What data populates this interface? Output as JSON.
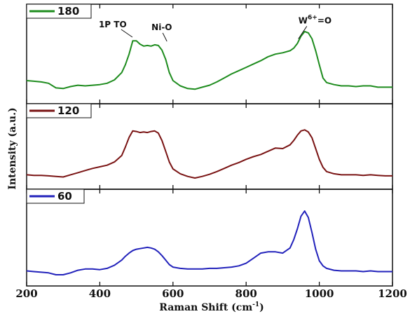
{
  "chart_data": {
    "type": "line",
    "xlabel": "Raman Shift (cm",
    "xlabel_sup": "-1",
    "xlabel_tail": ")",
    "ylabel": "Intensity (a.u.)",
    "xlim": [
      200,
      1200
    ],
    "xticks": [
      "200",
      "400",
      "600",
      "800",
      "1000",
      "1200"
    ],
    "layout": "three stacked panels sharing x axis, no y tick labels",
    "panels": [
      {
        "name": "180",
        "color": "#1e8c1e",
        "ylim": [
          0,
          1.1
        ],
        "x": [
          200,
          220,
          240,
          260,
          280,
          300,
          320,
          340,
          360,
          380,
          400,
          420,
          440,
          460,
          470,
          480,
          490,
          500,
          510,
          520,
          530,
          540,
          550,
          560,
          570,
          580,
          590,
          600,
          620,
          640,
          660,
          680,
          700,
          720,
          740,
          760,
          780,
          800,
          820,
          840,
          860,
          880,
          900,
          920,
          930,
          940,
          950,
          960,
          970,
          980,
          990,
          1000,
          1010,
          1020,
          1040,
          1060,
          1080,
          1100,
          1120,
          1140,
          1160,
          1180,
          1200
        ],
        "y": [
          0.18,
          0.17,
          0.16,
          0.14,
          0.07,
          0.06,
          0.09,
          0.11,
          0.1,
          0.11,
          0.12,
          0.14,
          0.19,
          0.3,
          0.42,
          0.58,
          0.78,
          0.78,
          0.73,
          0.7,
          0.71,
          0.7,
          0.72,
          0.71,
          0.64,
          0.5,
          0.3,
          0.18,
          0.1,
          0.06,
          0.05,
          0.08,
          0.11,
          0.16,
          0.22,
          0.28,
          0.33,
          0.38,
          0.43,
          0.48,
          0.54,
          0.58,
          0.6,
          0.63,
          0.67,
          0.74,
          0.85,
          0.92,
          0.9,
          0.81,
          0.63,
          0.42,
          0.22,
          0.15,
          0.12,
          0.1,
          0.1,
          0.09,
          0.1,
          0.1,
          0.08,
          0.08,
          0.08
        ]
      },
      {
        "name": "120",
        "color": "#7a1414",
        "ylim": [
          0,
          1.1
        ],
        "x": [
          200,
          220,
          240,
          260,
          280,
          300,
          320,
          340,
          360,
          380,
          400,
          420,
          440,
          460,
          470,
          480,
          490,
          500,
          510,
          520,
          530,
          540,
          550,
          560,
          570,
          580,
          590,
          600,
          620,
          640,
          660,
          680,
          700,
          720,
          740,
          760,
          780,
          800,
          820,
          840,
          860,
          880,
          900,
          920,
          930,
          940,
          950,
          960,
          970,
          980,
          990,
          1000,
          1010,
          1020,
          1040,
          1060,
          1080,
          1100,
          1120,
          1140,
          1160,
          1180,
          1200
        ],
        "y": [
          0.06,
          0.05,
          0.05,
          0.04,
          0.03,
          0.02,
          0.06,
          0.1,
          0.14,
          0.18,
          0.21,
          0.24,
          0.3,
          0.42,
          0.58,
          0.76,
          0.88,
          0.87,
          0.85,
          0.86,
          0.85,
          0.87,
          0.88,
          0.84,
          0.7,
          0.5,
          0.3,
          0.17,
          0.08,
          0.03,
          0.0,
          0.03,
          0.07,
          0.12,
          0.18,
          0.24,
          0.29,
          0.35,
          0.4,
          0.44,
          0.5,
          0.56,
          0.55,
          0.62,
          0.7,
          0.8,
          0.88,
          0.9,
          0.86,
          0.75,
          0.55,
          0.35,
          0.2,
          0.12,
          0.08,
          0.06,
          0.06,
          0.06,
          0.05,
          0.06,
          0.05,
          0.04,
          0.04
        ]
      },
      {
        "name": "60",
        "color": "#2222bb",
        "ylim": [
          0,
          1.1
        ],
        "x": [
          200,
          220,
          240,
          260,
          280,
          300,
          320,
          340,
          360,
          380,
          400,
          420,
          440,
          460,
          470,
          480,
          490,
          500,
          510,
          520,
          530,
          540,
          550,
          560,
          570,
          580,
          590,
          600,
          620,
          640,
          660,
          680,
          700,
          720,
          740,
          760,
          780,
          800,
          820,
          840,
          860,
          880,
          900,
          920,
          930,
          940,
          950,
          960,
          970,
          980,
          990,
          1000,
          1010,
          1020,
          1040,
          1060,
          1080,
          1100,
          1120,
          1140,
          1160,
          1180,
          1200
        ],
        "y": [
          0.06,
          0.05,
          0.04,
          0.03,
          0.0,
          0.0,
          0.03,
          0.07,
          0.09,
          0.09,
          0.08,
          0.1,
          0.15,
          0.23,
          0.29,
          0.34,
          0.38,
          0.4,
          0.41,
          0.42,
          0.43,
          0.42,
          0.4,
          0.36,
          0.3,
          0.23,
          0.16,
          0.12,
          0.1,
          0.09,
          0.09,
          0.09,
          0.1,
          0.1,
          0.11,
          0.12,
          0.14,
          0.18,
          0.26,
          0.34,
          0.36,
          0.36,
          0.34,
          0.42,
          0.55,
          0.72,
          0.92,
          1.0,
          0.9,
          0.66,
          0.4,
          0.22,
          0.14,
          0.1,
          0.07,
          0.06,
          0.06,
          0.06,
          0.05,
          0.06,
          0.05,
          0.05,
          0.05
        ]
      }
    ],
    "annotations": [
      {
        "text": "1P TO",
        "panel": 0,
        "x": 470,
        "y": 0.92
      },
      {
        "text": "Ni-O",
        "panel": 0,
        "x": 572,
        "y": 0.92
      },
      {
        "text": "W",
        "sup": "6+",
        "tail": "=O",
        "panel": 0,
        "x": 985,
        "y": 1.0
      }
    ],
    "legend_placement": "top-left of each panel",
    "grid": false
  }
}
